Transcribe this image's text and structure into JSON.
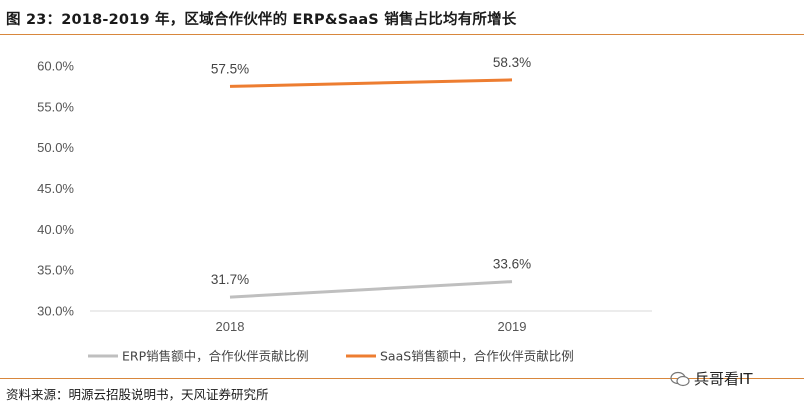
{
  "header": {
    "title": "图 23：2018-2019 年，区域合作伙伴的 ERP&SaaS 销售占比均有所增长"
  },
  "footer": {
    "source": "资料来源：明源云招股说明书，天风证券研究所",
    "watermark": "兵哥看IT"
  },
  "chart_data": {
    "type": "line",
    "title": "",
    "xlabel": "",
    "ylabel": "",
    "x": [
      "2018",
      "2019"
    ],
    "ylim": [
      30.0,
      60.0
    ],
    "yticks": [
      "30.0%",
      "35.0%",
      "40.0%",
      "45.0%",
      "50.0%",
      "55.0%",
      "60.0%"
    ],
    "ytick_values": [
      30,
      35,
      40,
      45,
      50,
      55,
      60
    ],
    "grid": false,
    "legend_position": "bottom",
    "series": [
      {
        "name": "ERP销售额中，合作伙伴贡献比例",
        "values": [
          31.7,
          33.6
        ],
        "labels": [
          "31.7%",
          "33.6%"
        ],
        "color": "#bfbfbf"
      },
      {
        "name": "SaaS销售额中，合作伙伴贡献比例",
        "values": [
          57.5,
          58.3
        ],
        "labels": [
          "57.5%",
          "58.3%"
        ],
        "color": "#ed7d31"
      }
    ]
  }
}
